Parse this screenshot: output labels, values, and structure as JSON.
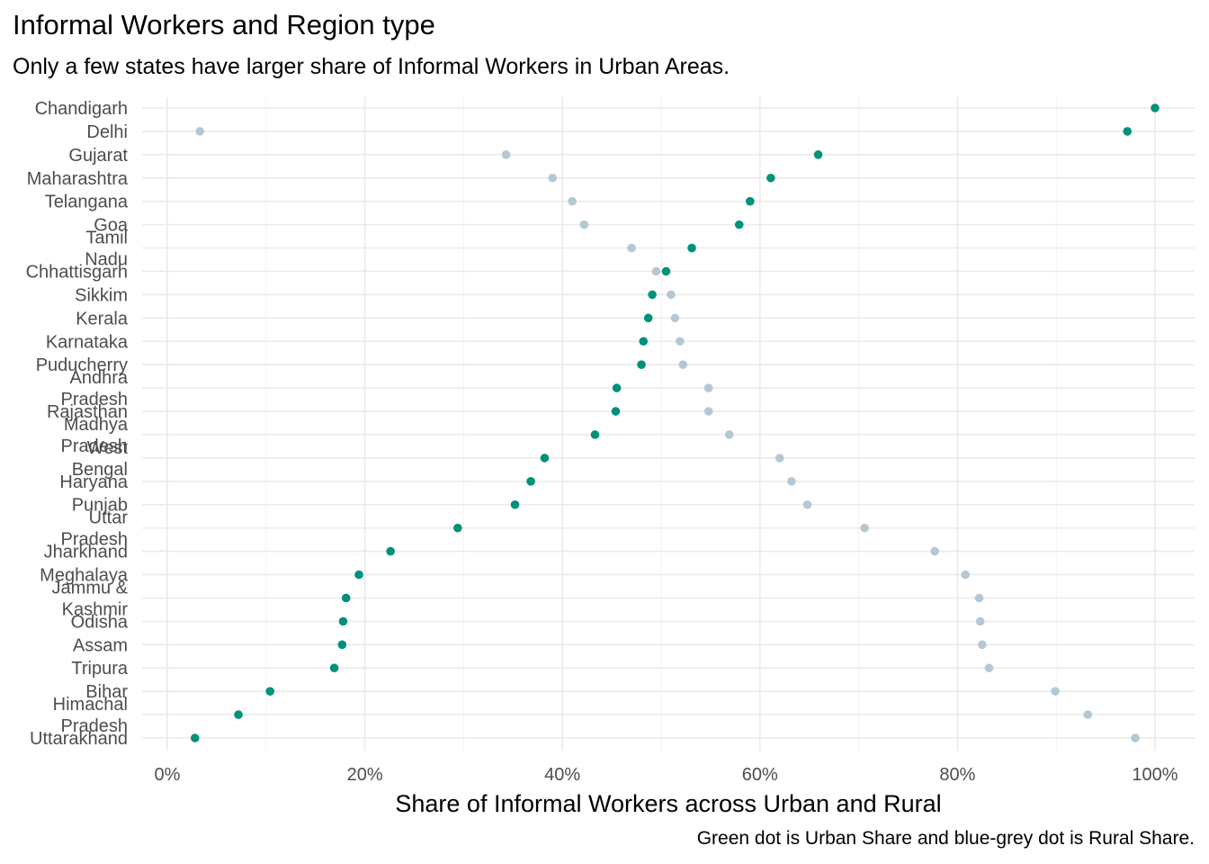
{
  "chart_data": {
    "type": "scatter",
    "title": "Informal Workers and Region type",
    "subtitle": "Only a few states have larger share of Informal Workers in Urban Areas.",
    "xlabel": "Share of Informal Workers across Urban and Rural",
    "caption": "Green dot is Urban Share and blue-grey dot is Rural Share.",
    "xlim": [
      0,
      1
    ],
    "x_ticks": [
      "0%",
      "20%",
      "40%",
      "60%",
      "80%",
      "100%"
    ],
    "grid": true,
    "categories": [
      "Chandigarh",
      "Delhi",
      "Gujarat",
      "Maharashtra",
      "Telangana",
      "Goa",
      "Tamil\nNadu",
      "Chhattisgarh",
      "Sikkim",
      "Kerala",
      "Karnataka",
      "Puducherry",
      "Andhra\nPradesh",
      "Rajasthan",
      "Madhya\nPradesh",
      "West\nBengal",
      "Haryana",
      "Punjab",
      "Uttar\nPradesh",
      "Jharkhand",
      "Meghalaya",
      "Jammu &\nKashmir",
      "Odisha",
      "Assam",
      "Tripura",
      "Bihar",
      "Himachal\nPradesh",
      "Uttarakhand"
    ],
    "series": [
      {
        "name": "Urban Share",
        "color": "#00917c",
        "values": [
          1.0,
          0.972,
          0.659,
          0.611,
          0.59,
          0.579,
          0.531,
          0.505,
          0.491,
          0.487,
          0.482,
          0.48,
          0.455,
          0.454,
          0.433,
          0.382,
          0.368,
          0.352,
          0.294,
          0.226,
          0.194,
          0.181,
          0.178,
          0.177,
          0.169,
          0.104,
          0.072,
          0.028
        ]
      },
      {
        "name": "Rural Share",
        "color": "#b4c8d4",
        "values": [
          null,
          0.033,
          0.343,
          0.39,
          0.41,
          0.422,
          0.47,
          0.495,
          0.51,
          0.514,
          0.519,
          0.522,
          0.548,
          0.548,
          0.569,
          0.62,
          0.632,
          0.648,
          0.706,
          0.777,
          0.808,
          0.822,
          0.823,
          0.825,
          0.832,
          0.899,
          0.932,
          0.98
        ]
      }
    ]
  }
}
